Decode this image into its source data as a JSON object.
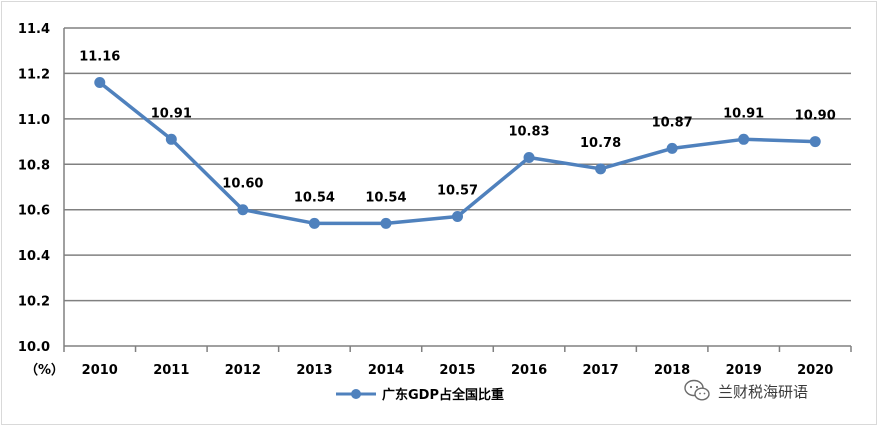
{
  "chart_data": {
    "type": "line",
    "categories": [
      "2010",
      "2011",
      "2012",
      "2013",
      "2014",
      "2015",
      "2016",
      "2017",
      "2018",
      "2019",
      "2020"
    ],
    "series": [
      {
        "name": "广东GDP占全国比重",
        "values": [
          11.16,
          10.91,
          10.6,
          10.54,
          10.54,
          10.57,
          10.83,
          10.78,
          10.87,
          10.91,
          10.9
        ],
        "labels": [
          "11.16",
          "10.91",
          "10.60",
          "10.54",
          "10.54",
          "10.57",
          "10.83",
          "10.78",
          "10.87",
          "10.91",
          "10.90"
        ],
        "color": "#4f81bd"
      }
    ],
    "ylim": [
      10.0,
      11.4
    ],
    "yticks": [
      "10.0",
      "10.2",
      "10.4",
      "10.6",
      "10.8",
      "11.0",
      "11.2",
      "11.4"
    ],
    "ytick_values": [
      10.0,
      10.2,
      10.4,
      10.6,
      10.8,
      11.0,
      11.2,
      11.4
    ],
    "y_unit_label": "（%）",
    "grid": true,
    "legend_position": "bottom-center"
  },
  "watermark": {
    "text": "兰财税海研语",
    "icon": "wechat-icon"
  },
  "colors": {
    "line": "#4f81bd",
    "grid": "#808080",
    "axis": "#808080"
  }
}
